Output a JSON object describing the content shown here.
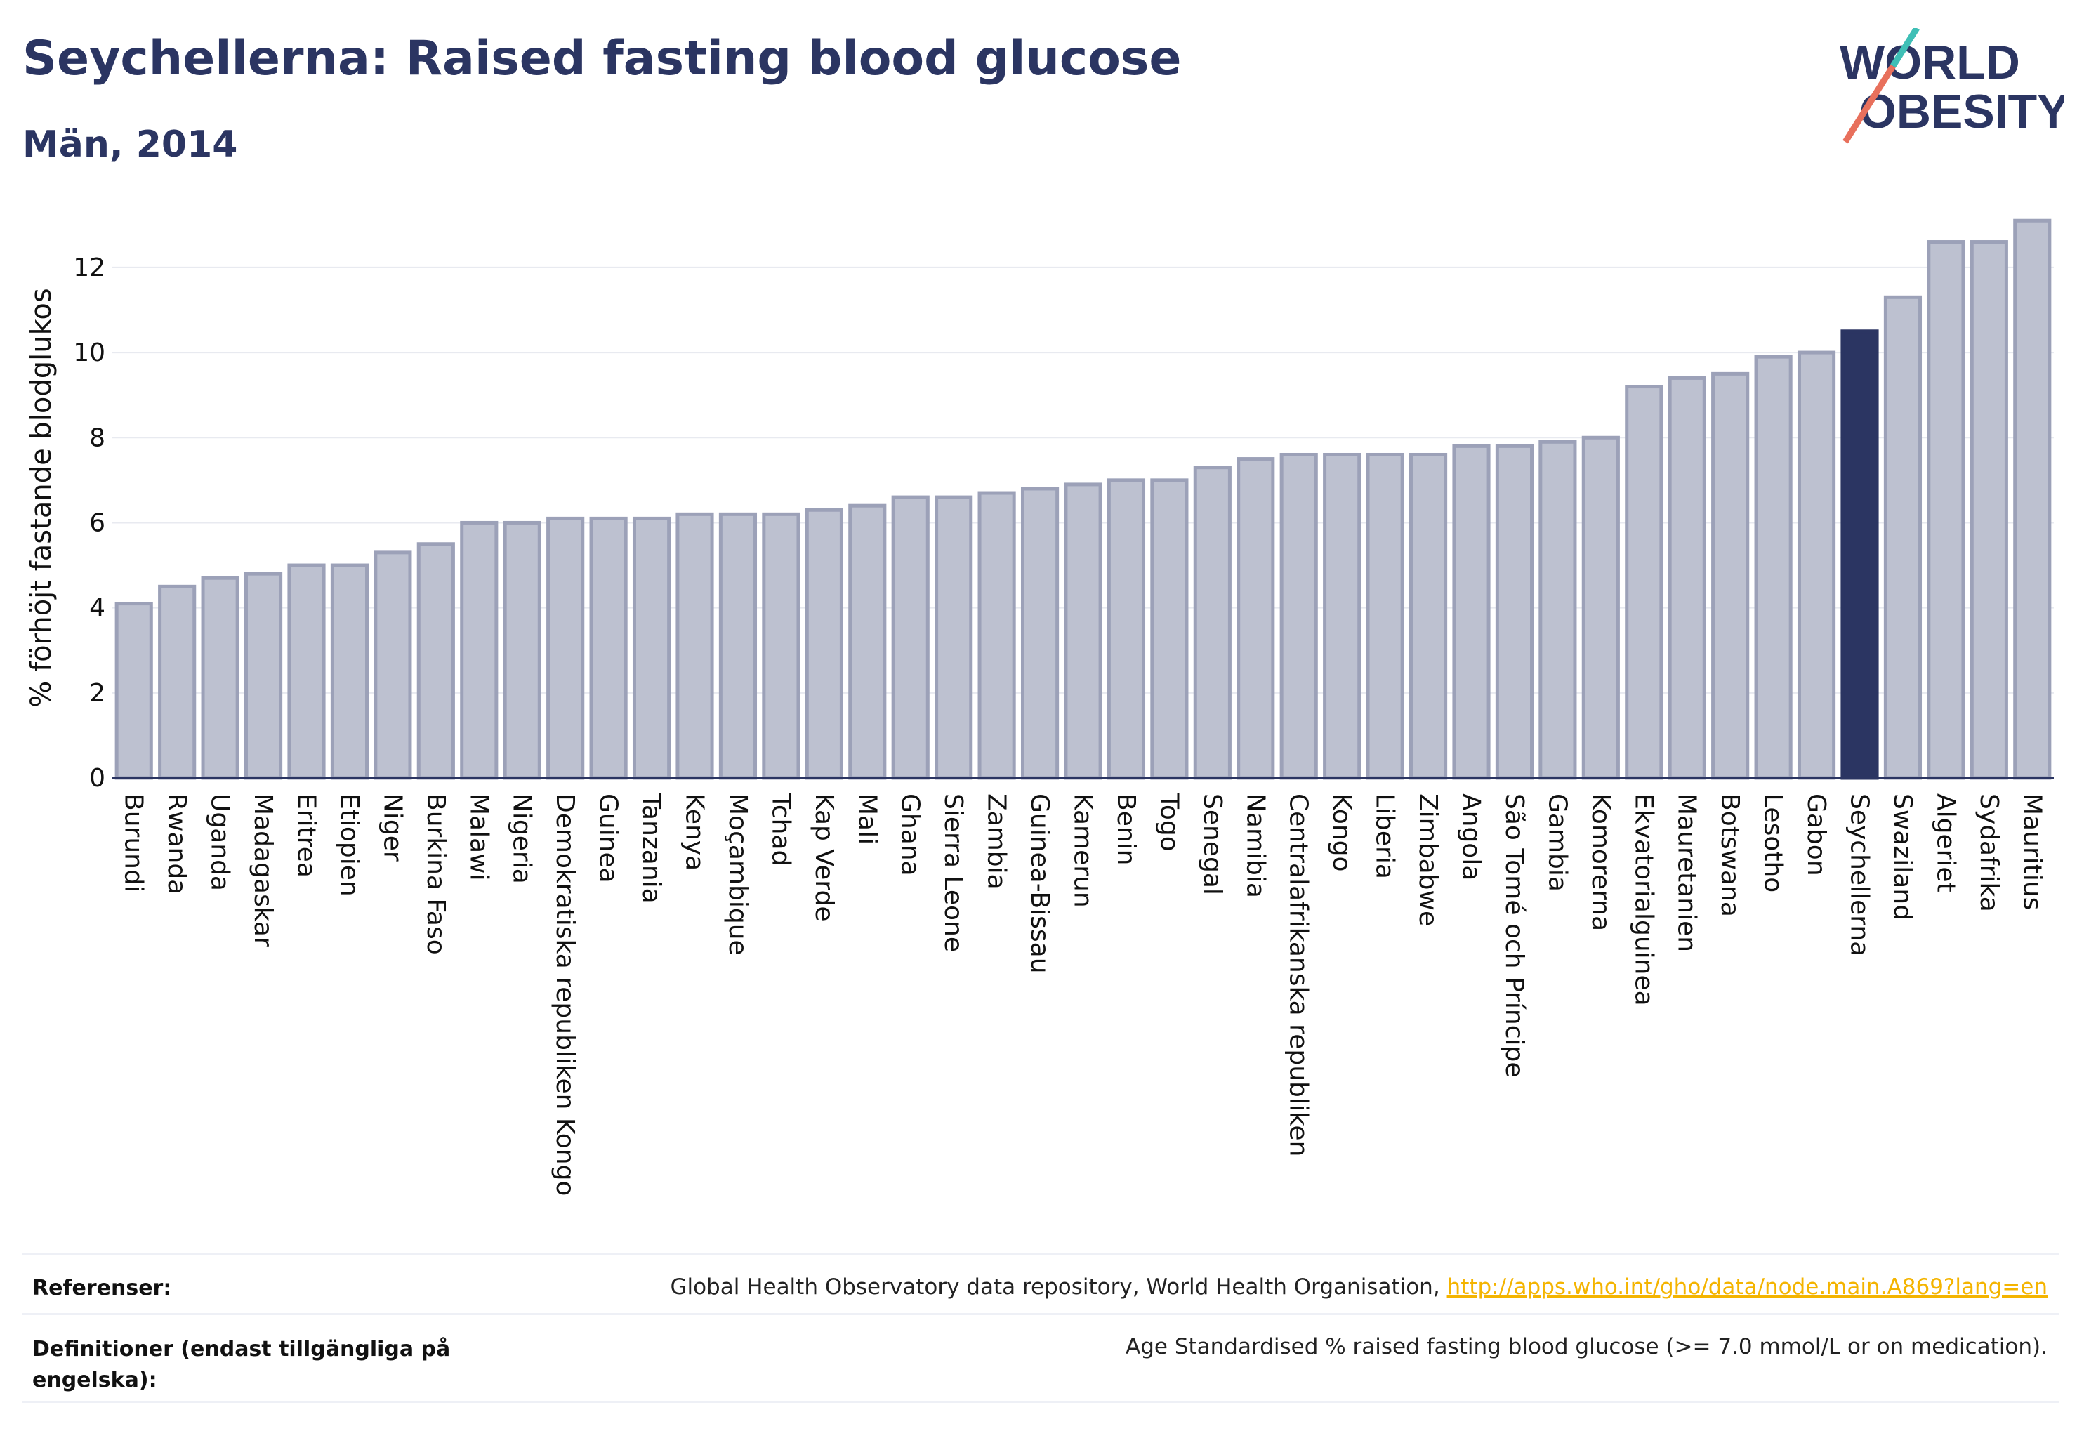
{
  "header": {
    "title": "Seychellerna: Raised fasting blood glucose",
    "subtitle": "Män, 2014"
  },
  "logo": {
    "line1": "WORLD",
    "line2": "OBESITY",
    "name": "world-obesity-logo"
  },
  "colors": {
    "highlight": "#2b3562",
    "bar": "#bdc1d0",
    "bar_edge": "#9ca1b8",
    "title": "#2b3562",
    "link": "#f4b400"
  },
  "chart_data": {
    "type": "bar",
    "ylabel": "% förhöjt fastande blodglukos",
    "ylim": [
      0,
      13.5
    ],
    "yticks": [
      0,
      2,
      4,
      6,
      8,
      10,
      12
    ],
    "grid": true,
    "highlight": "Seychellerna",
    "categories": [
      "Burundi",
      "Rwanda",
      "Uganda",
      "Madagaskar",
      "Eritrea",
      "Etiopien",
      "Niger",
      "Burkina Faso",
      "Malawi",
      "Nigeria",
      "Demokratiska republiken Kongo",
      "Guinea",
      "Tanzania",
      "Kenya",
      "Moçambique",
      "Tchad",
      "Kap Verde",
      "Mali",
      "Ghana",
      "Sierra Leone",
      "Zambia",
      "Guinea-Bissau",
      "Kamerun",
      "Benin",
      "Togo",
      "Senegal",
      "Namibia",
      "Centralafrikanska republiken",
      "Kongo",
      "Liberia",
      "Zimbabwe",
      "Angola",
      "São Tomé och Príncipe",
      "Gambia",
      "Komorerna",
      "Ekvatorialguinea",
      "Mauretanien",
      "Botswana",
      "Lesotho",
      "Gabon",
      "Seychellerna",
      "Swaziland",
      "Algeriet",
      "Sydafrika",
      "Mauritius"
    ],
    "values": [
      4.1,
      4.5,
      4.7,
      4.8,
      5.0,
      5.0,
      5.3,
      5.5,
      6.0,
      6.0,
      6.1,
      6.1,
      6.1,
      6.2,
      6.2,
      6.2,
      6.3,
      6.4,
      6.6,
      6.6,
      6.7,
      6.8,
      6.9,
      7.0,
      7.0,
      7.3,
      7.5,
      7.6,
      7.6,
      7.6,
      7.6,
      7.8,
      7.8,
      7.9,
      8.0,
      9.2,
      9.4,
      9.5,
      9.9,
      10.0,
      10.5,
      11.3,
      12.6,
      12.6,
      13.1
    ]
  },
  "footer": {
    "ref_label": "Referenser:",
    "ref_text": "Global Health Observatory data repository, World Health Organisation, ",
    "ref_link": "http://apps.who.int/gho/data/node.main.A869?lang=en",
    "def_label_1": "Definitioner (endast tillgängliga på",
    "def_label_2": "engelska):",
    "def_text": "Age Standardised % raised fasting blood glucose (>= 7.0 mmol/L or on medication)."
  }
}
